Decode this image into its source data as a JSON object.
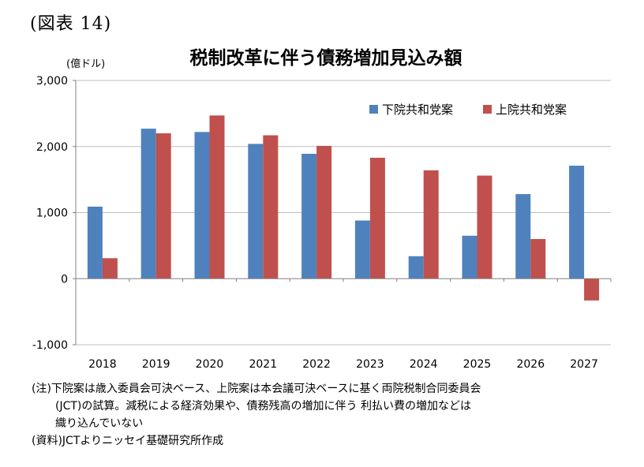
{
  "figure_label": "(図表 14)",
  "notes": {
    "line1": "(注)下院案は歳入委員会可決ベース、上院案は本会議可決ベースに基く両院税制合同委員会",
    "line2": "(JCT)の試算。減税による経済効果や、債務残高の増加に伴う 利払い費の増加などは",
    "line3": "織り込んでいない",
    "source": "(資料)JCTよりニッセイ基礎研究所作成"
  },
  "chart_data": {
    "type": "bar",
    "title": "税制改革に伴う債務増加見込み額",
    "unit_label": "(億ドル)",
    "categories": [
      "2018",
      "2019",
      "2020",
      "2021",
      "2022",
      "2023",
      "2024",
      "2025",
      "2026",
      "2027"
    ],
    "series": [
      {
        "name": "下院共和党案",
        "color": "#4f81bd",
        "values": [
          1090,
          2270,
          2220,
          2040,
          1890,
          880,
          340,
          650,
          1280,
          1710
        ]
      },
      {
        "name": "上院共和党案",
        "color": "#c0504d",
        "values": [
          310,
          2200,
          2470,
          2170,
          2010,
          1830,
          1640,
          1560,
          600,
          -330
        ]
      }
    ],
    "ylim": [
      -1000,
      3000
    ],
    "yticks": [
      -1000,
      0,
      1000,
      2000,
      3000
    ],
    "ytick_labels": [
      "-1,000",
      "0",
      "1,000",
      "2,000",
      "3,000"
    ],
    "grid": true,
    "legend_position": "top-right"
  }
}
